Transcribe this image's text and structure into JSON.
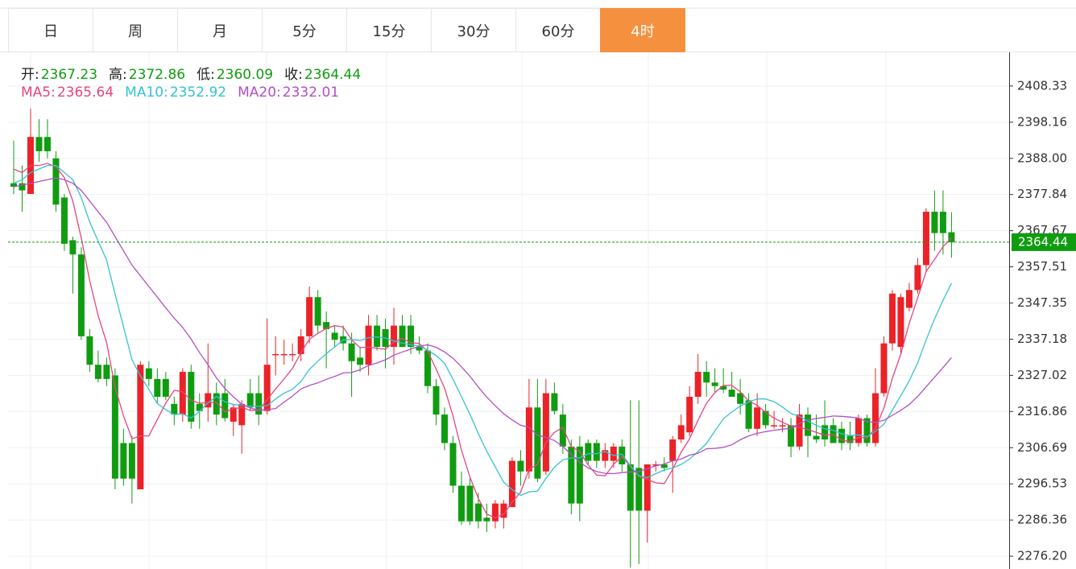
{
  "tabs": {
    "items": [
      "日",
      "周",
      "月",
      "5分",
      "15分",
      "30分",
      "60分",
      "4时"
    ],
    "active": 7
  },
  "chart_data": {
    "type": "candlestick",
    "ohlc_labels": [
      "开:",
      "高:",
      "低:",
      "收:"
    ],
    "up_color": "#eb2227",
    "down_color": "#109c10",
    "open": [
      2381,
      2381,
      2378,
      2394,
      2394,
      2388,
      2377,
      2365,
      2361,
      2338,
      2330,
      2330,
      2327,
      2308,
      2308,
      2295,
      2329,
      2326,
      2326,
      2319,
      2316,
      2328,
      2319,
      2318,
      2322,
      2322,
      2314,
      2313,
      2322,
      2322,
      2317,
      2333,
      2333,
      2333,
      2333,
      2338,
      2349,
      2342,
      2339,
      2338,
      2336,
      2332,
      2330,
      2341,
      2340,
      2335,
      2341,
      2341,
      2335,
      2334,
      2324,
      2316,
      2308,
      2296,
      2296,
      2291,
      2287,
      2286,
      2287,
      2290,
      2303,
      2300,
      2318,
      2300,
      2322,
      2316,
      2307,
      2307,
      2308,
      2308,
      2303,
      2303,
      2307,
      2302,
      2301,
      2289,
      2302,
      2302,
      2303,
      2309,
      2311,
      2321,
      2328,
      2325,
      2324,
      2323,
      2322,
      2320,
      2312,
      2317,
      2313,
      2313,
      2313,
      2307,
      2316,
      2310,
      2313,
      2313,
      2312,
      2310,
      2308,
      2315,
      2308,
      2322,
      2336,
      2335,
      2346,
      2351,
      2358,
      2373,
      2373,
      2367.23
    ],
    "high": [
      2393,
      2386,
      2402,
      2399,
      2399,
      2390,
      2378,
      2366,
      2363,
      2340,
      2334,
      2332,
      2329,
      2312,
      2310,
      2331,
      2331,
      2329,
      2328,
      2321,
      2329,
      2330,
      2322,
      2336,
      2325,
      2326,
      2319,
      2320,
      2326,
      2327,
      2343,
      2338,
      2337,
      2336,
      2340,
      2352,
      2351,
      2345,
      2341,
      2341,
      2339,
      2335,
      2344,
      2344,
      2343,
      2346,
      2344,
      2344,
      2338,
      2336,
      2326,
      2318,
      2310,
      2300,
      2298,
      2294,
      2291,
      2292,
      2292,
      2304,
      2306,
      2326,
      2326,
      2326,
      2325,
      2319,
      2309,
      2310,
      2309,
      2309,
      2308,
      2308,
      2309,
      2320,
      2320,
      2302,
      2303,
      2304,
      2310,
      2316,
      2324,
      2333,
      2331,
      2329,
      2329,
      2328,
      2326,
      2322,
      2322,
      2319,
      2317,
      2315,
      2315,
      2319,
      2318,
      2316,
      2320,
      2315,
      2314,
      2314,
      2316,
      2316,
      2329,
      2338,
      2351,
      2350,
      2353,
      2360,
      2374,
      2379,
      2379,
      2372.86
    ],
    "low": [
      2378,
      2373,
      2378,
      2387,
      2388,
      2373,
      2362,
      2350,
      2337,
      2328,
      2325,
      2324,
      2295,
      2296,
      2291,
      2295,
      2324,
      2319,
      2320,
      2313,
      2314,
      2312,
      2312,
      2314,
      2313,
      2314,
      2310,
      2305,
      2317,
      2313,
      2316,
      2327,
      2330,
      2331,
      2331,
      2336,
      2339,
      2329,
      2335,
      2334,
      2321,
      2328,
      2327,
      2334,
      2329,
      2330,
      2335,
      2333,
      2333,
      2322,
      2313,
      2306,
      2294,
      2285,
      2285,
      2284,
      2283,
      2284,
      2284,
      2290,
      2296,
      2298,
      2297,
      2299,
      2316,
      2305,
      2288,
      2286,
      2302,
      2301,
      2301,
      2301,
      2300,
      2273,
      2274,
      2280,
      2300,
      2300,
      2294,
      2308,
      2310,
      2319,
      2321,
      2322,
      2322,
      2321,
      2316,
      2311,
      2310,
      2312,
      2312,
      2311,
      2304,
      2306,
      2304,
      2308,
      2307,
      2308,
      2306,
      2306,
      2307,
      2307,
      2307,
      2321,
      2334,
      2333,
      2345,
      2350,
      2356,
      2362,
      2361,
      2360.09
    ],
    "close": [
      2380,
      2379,
      2394,
      2390,
      2390,
      2375,
      2364,
      2361,
      2338,
      2330,
      2326,
      2326,
      2298,
      2298,
      2298,
      2330,
      2326,
      2321,
      2321,
      2316,
      2328,
      2314,
      2317,
      2322,
      2316,
      2315,
      2318,
      2319,
      2318,
      2316,
      2330,
      2333,
      2333,
      2333,
      2338,
      2349,
      2341,
      2340,
      2337,
      2336,
      2331,
      2330,
      2341,
      2335,
      2335,
      2341,
      2335,
      2335,
      2334,
      2324,
      2316,
      2308,
      2296,
      2286,
      2286,
      2286,
      2286,
      2291,
      2291,
      2303,
      2300,
      2318,
      2298,
      2322,
      2317,
      2307,
      2291,
      2291,
      2303,
      2303,
      2306,
      2307,
      2302,
      2289,
      2289,
      2302,
      2302,
      2301,
      2309,
      2313,
      2321,
      2328,
      2325,
      2324,
      2323,
      2321,
      2319,
      2312,
      2318,
      2313,
      2313,
      2313,
      2307,
      2316,
      2310,
      2309,
      2309,
      2308,
      2308,
      2308,
      2315,
      2308,
      2322,
      2336,
      2350,
      2349,
      2351,
      2358,
      2373,
      2367,
      2367,
      2364.44
    ],
    "ma": [
      {
        "name": "MA5:",
        "color": "#e8457c",
        "values": [
          2385,
          2384,
          2386,
          2386,
          2386.6,
          2385.6,
          2382.6,
          2376,
          2365.6,
          2353.6,
          2343.8,
          2336.2,
          2323.6,
          2315.6,
          2309.2,
          2310,
          2310,
          2314.6,
          2319.2,
          2322.8,
          2322.4,
          2320,
          2319.2,
          2319.4,
          2319.4,
          2316.8,
          2317.6,
          2318,
          2317.2,
          2317.2,
          2320.2,
          2323.2,
          2326,
          2329,
          2333.4,
          2337.2,
          2338.8,
          2340.2,
          2341,
          2340.6,
          2337,
          2334.8,
          2335,
          2334.6,
          2334.4,
          2336.4,
          2337.4,
          2336.2,
          2336,
          2333.8,
          2328.8,
          2323.4,
          2315.6,
          2306,
          2298.4,
          2292.4,
          2288,
          2287,
          2288,
          2291.4,
          2294.2,
          2300.6,
          2302,
          2308.2,
          2311,
          2312.4,
          2307,
          2305.6,
          2301.8,
          2299,
          2298.8,
          2302,
          2304.2,
          2301.4,
          2298.6,
          2297.8,
          2296.8,
          2296.6,
          2300.6,
          2305.4,
          2309.2,
          2314.4,
          2319.2,
          2322.2,
          2324.2,
          2324.2,
          2322.4,
          2319.8,
          2318.6,
          2316.6,
          2315,
          2313.8,
          2312.8,
          2312.4,
          2311.8,
          2311,
          2310.2,
          2310.4,
          2308.8,
          2308.4,
          2309.6,
          2309.4,
          2312.2,
          2317.8,
          2326.2,
          2333,
          2341.6,
          2348.8,
          2356.2,
          2359.6,
          2363.2,
          2365.64
        ]
      },
      {
        "name": "MA10:",
        "color": "#35c2d4",
        "values": [
          2381,
          2382,
          2384,
          2385,
          2386,
          2386,
          2384,
          2382,
          2377,
          2370.1,
          2364.7,
          2359.4,
          2349.8,
          2340.6,
          2331.4,
          2326.9,
          2323.1,
          2319.1,
          2317.4,
          2316,
          2316.2,
          2315,
          2316.9,
          2319.3,
          2321.1,
          2319.6,
          2318.8,
          2318.6,
          2318.3,
          2318.3,
          2318.5,
          2320.4,
          2322,
          2323.1,
          2325.3,
          2328.7,
          2331,
          2333.1,
          2335,
          2337,
          2337.1,
          2336.8,
          2337.6,
          2337.8,
          2337.5,
          2336.7,
          2336.1,
          2335.6,
          2335.3,
          2334.1,
          2332.6,
          2330.4,
          2325.9,
          2321,
          2316.1,
          2310.6,
          2305.7,
          2301.3,
          2297,
          2294.9,
          2293.3,
          2294.3,
          2294.5,
          2298.1,
          2301.2,
          2303.3,
          2303.8,
          2303.8,
          2305,
          2305,
          2305.6,
          2304.5,
          2304.9,
          2301.6,
          2298.8,
          2298.3,
          2299.4,
          2300.4,
          2301,
          2302,
          2303.5,
          2305.6,
          2307.9,
          2311.4,
          2314.8,
          2316.7,
          2318.4,
          2319.5,
          2320.4,
          2320.4,
          2319.6,
          2318.1,
          2316.3,
          2315.5,
          2314.2,
          2313,
          2312,
          2311.6,
          2310.6,
          2310.1,
          2310.3,
          2309.8,
          2311.3,
          2313.3,
          2317.3,
          2321.3,
          2325.5,
          2330.5,
          2337,
          2342.9,
          2348.1,
          2352.92
        ]
      },
      {
        "name": "MA20:",
        "color": "#b24fc6",
        "values": [
          2380,
          2380.5,
          2381,
          2381.5,
          2382,
          2382.5,
          2382,
          2381,
          2379,
          2376,
          2373,
          2370,
          2366,
          2362,
          2358,
          2355,
          2352,
          2349,
          2346,
          2343.1,
          2340.5,
          2337.2,
          2333.4,
          2330,
          2326.3,
          2323.3,
          2321,
          2318.9,
          2317.9,
          2317.2,
          2317.4,
          2317.7,
          2319.5,
          2321.2,
          2323.2,
          2324.2,
          2324.9,
          2325.9,
          2326.7,
          2327.7,
          2327.8,
          2328.6,
          2329.8,
          2330.5,
          2331.4,
          2332.7,
          2333.6,
          2334.4,
          2335.2,
          2335.6,
          2334.9,
          2333.6,
          2331.8,
          2329.4,
          2326.8,
          2323.7,
          2320.9,
          2318.5,
          2316.2,
          2314.5,
          2313,
          2312.4,
          2310.2,
          2309.6,
          2308.7,
          2307,
          2304.8,
          2302.6,
          2301,
          2300,
          2299.5,
          2299.4,
          2299.7,
          2299.9,
          2300,
          2300.8,
          2301.6,
          2302.1,
          2303,
          2303.5,
          2304.6,
          2305.1,
          2306.4,
          2306.5,
          2306.8,
          2307.5,
          2308.9,
          2310,
          2310.7,
          2311.2,
          2311.6,
          2311.9,
          2312.1,
          2313.5,
          2314.5,
          2314.9,
          2315.2,
          2315.6,
          2315.5,
          2315.3,
          2315,
          2314,
          2313.8,
          2314.4,
          2315.8,
          2317.2,
          2318.8,
          2321.1,
          2323.8,
          2326.5,
          2329.2,
          2332.01
        ]
      }
    ],
    "ylim": [
      2272.6,
      2417.8
    ],
    "yticks": [
      2408.33,
      2398.16,
      {
        "value": 2388,
        "label": "2388.00"
      },
      2377.84,
      2367.67,
      2357.51,
      2347.35,
      2337.18,
      2327.02,
      2316.86,
      2306.69,
      2296.53,
      2286.36,
      {
        "value": 2276.2,
        "label": "2276.20"
      }
    ],
    "grid": true
  }
}
